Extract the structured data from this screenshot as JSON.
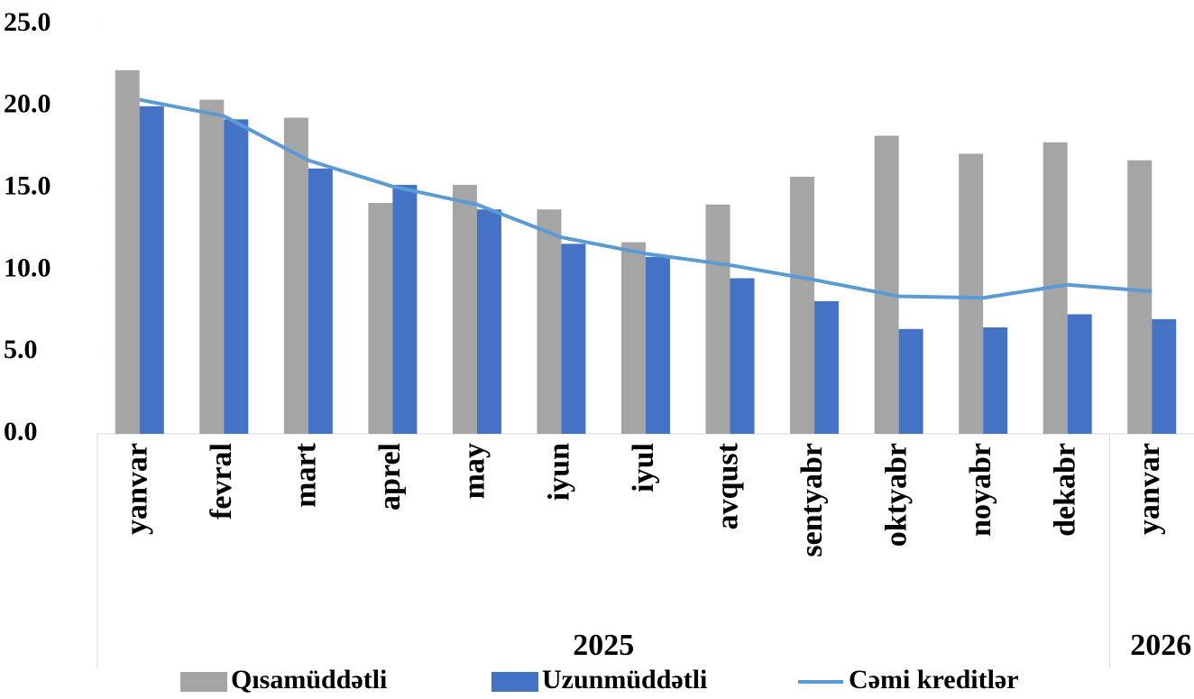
{
  "chart_data": {
    "type": "bar",
    "groups": [
      {
        "name": "2025",
        "categories": [
          "yanvar",
          "fevral",
          "mart",
          "aprel",
          "may",
          "iyun",
          "iyul",
          "avqust",
          "sentyabr",
          "oktyabr",
          "noyabr",
          "dekabr"
        ]
      },
      {
        "name": "2026",
        "categories": [
          "yanvar"
        ]
      }
    ],
    "series": [
      {
        "name": "Qısamüddətli",
        "type": "bar",
        "color": "#a5a5a5",
        "values": [
          22.2,
          20.4,
          19.3,
          14.1,
          15.2,
          13.7,
          11.7,
          14.0,
          15.7,
          18.2,
          17.1,
          17.8,
          16.7
        ]
      },
      {
        "name": "Uzunmüddətli",
        "type": "bar",
        "color": "#4472c4",
        "values": [
          20.0,
          19.2,
          16.2,
          15.2,
          13.7,
          11.6,
          10.8,
          9.5,
          8.1,
          6.4,
          6.5,
          7.3,
          7.0
        ]
      },
      {
        "name": "Cəmi kreditlər",
        "type": "line",
        "color": "#5b9bd5",
        "values": [
          20.4,
          19.4,
          16.7,
          15.1,
          14.0,
          12.0,
          11.0,
          10.3,
          9.4,
          8.4,
          8.3,
          9.1,
          8.7
        ]
      }
    ],
    "ylim": [
      0,
      25
    ],
    "yticks": [
      {
        "value": 0,
        "label": "0.0"
      },
      {
        "value": 5,
        "label": "5.0"
      },
      {
        "value": 10,
        "label": "10.0"
      },
      {
        "value": 15,
        "label": "15.0"
      },
      {
        "value": 20,
        "label": "20.0"
      },
      {
        "value": 25,
        "label": "25.0"
      }
    ],
    "legend": "bottom"
  }
}
